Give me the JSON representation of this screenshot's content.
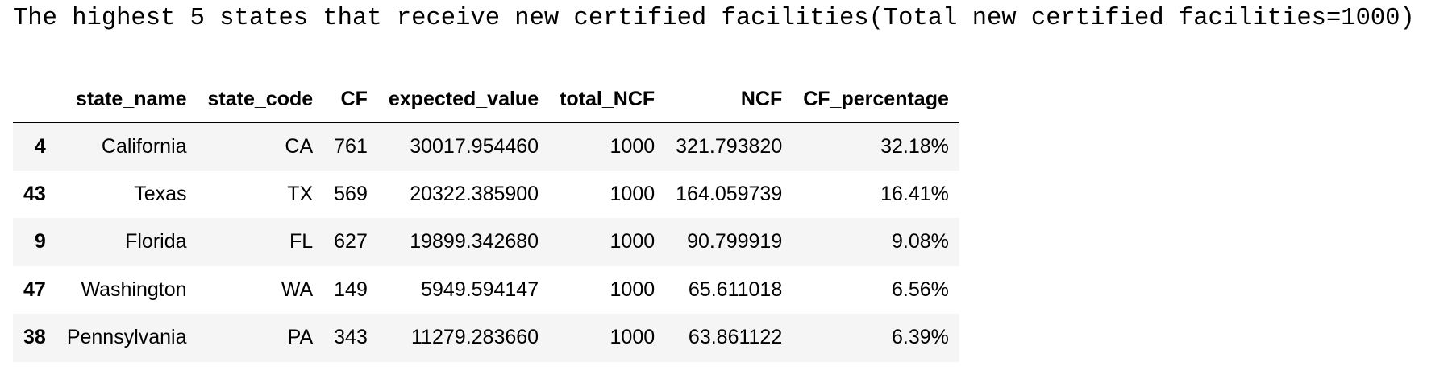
{
  "caption": "The highest 5 states that receive new certified facilities(Total new certified facilities=1000)",
  "table": {
    "columns": [
      "",
      "state_name",
      "state_code",
      "CF",
      "expected_value",
      "total_NCF",
      "NCF",
      "CF_percentage"
    ],
    "rows": [
      {
        "index": "4",
        "state_name": "California",
        "state_code": "CA",
        "CF": "761",
        "expected_value": "30017.954460",
        "total_NCF": "1000",
        "NCF": "321.793820",
        "CF_percentage": "32.18%"
      },
      {
        "index": "43",
        "state_name": "Texas",
        "state_code": "TX",
        "CF": "569",
        "expected_value": "20322.385900",
        "total_NCF": "1000",
        "NCF": "164.059739",
        "CF_percentage": "16.41%"
      },
      {
        "index": "9",
        "state_name": "Florida",
        "state_code": "FL",
        "CF": "627",
        "expected_value": "19899.342680",
        "total_NCF": "1000",
        "NCF": "90.799919",
        "CF_percentage": "9.08%"
      },
      {
        "index": "47",
        "state_name": "Washington",
        "state_code": "WA",
        "CF": "149",
        "expected_value": "5949.594147",
        "total_NCF": "1000",
        "NCF": "65.611018",
        "CF_percentage": "6.56%"
      },
      {
        "index": "38",
        "state_name": "Pennsylvania",
        "state_code": "PA",
        "CF": "343",
        "expected_value": "11279.283660",
        "total_NCF": "1000",
        "NCF": "63.861122",
        "CF_percentage": "6.39%"
      }
    ]
  },
  "colors": {
    "stripe": "#f5f5f5",
    "header_rule": "#000000",
    "background": "#ffffff"
  }
}
